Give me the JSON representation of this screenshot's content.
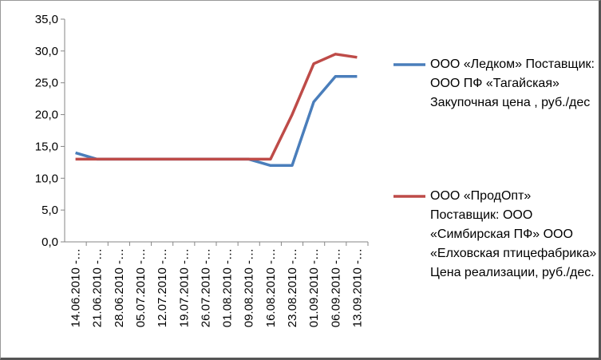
{
  "chart_data": {
    "type": "line",
    "categories": [
      "14.06.2010 -…",
      "21.06.2010 -…",
      "28.06.2010 -…",
      "05.07.2010 -…",
      "12.07.2010 -…",
      "19.07.2010 -…",
      "26.07.2010 -…",
      "01.08.2010 -…",
      "09.08.2010 -…",
      "16.08.2010 -…",
      "23.08.2010 -…",
      "01.09.2010 -…",
      "06.09.2010 -…",
      "13.09.2010 -…"
    ],
    "series": [
      {
        "name": "ООО «Ледком» Поставщик: ООО ПФ «Тагайская» Закупочная  цена , руб./дес",
        "color": "#4a7ebb",
        "values": [
          14,
          13,
          13,
          13,
          13,
          13,
          13,
          13,
          13,
          12,
          12,
          22,
          26,
          26
        ]
      },
      {
        "name": "ООО «ПродОпт» Поставщик: ООО «Симбирская ПФ» ООО «Елховская птицефабрика» Цена реализации, руб./дес.",
        "color": "#be4b48",
        "values": [
          13,
          13,
          13,
          13,
          13,
          13,
          13,
          13,
          13,
          13,
          20,
          28,
          29.5,
          29
        ]
      }
    ],
    "ylim": [
      0,
      35
    ],
    "yticks": [
      {
        "value": 0,
        "label": "0,0"
      },
      {
        "value": 5,
        "label": "5,0"
      },
      {
        "value": 10,
        "label": "10,0"
      },
      {
        "value": 15,
        "label": "15,0"
      },
      {
        "value": 20,
        "label": "20,0"
      },
      {
        "value": 25,
        "label": "25,0"
      },
      {
        "value": 30,
        "label": "30,0"
      },
      {
        "value": 35,
        "label": "35,0"
      }
    ],
    "grid": false
  }
}
